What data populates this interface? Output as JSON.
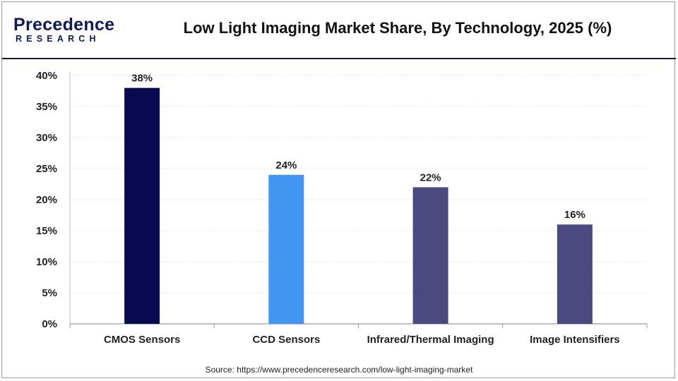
{
  "brand": {
    "name": "Precedence",
    "sub": "RESEARCH"
  },
  "source": "Source: https://www.precedenceresearch.com/low-light-imaging-market",
  "colors": {
    "bar1": "#0a0a50",
    "bar2": "#4495f0",
    "bar3": "#4a4a80",
    "bar4": "#4a4a80",
    "brand": "#0f1a55"
  },
  "chart_data": {
    "type": "bar",
    "title": "Low Light Imaging Market Share, By Technology, 2025 (%)",
    "xlabel": "",
    "ylabel": "",
    "categories": [
      "CMOS Sensors",
      "CCD Sensors",
      "Infrared/Thermal Imaging",
      "Image Intensifiers"
    ],
    "values": [
      38,
      24,
      22,
      16
    ],
    "data_labels": [
      "38%",
      "24%",
      "22%",
      "16%"
    ],
    "ylim": [
      0,
      40
    ],
    "yticks": [
      "0%",
      "5%",
      "10%",
      "15%",
      "20%",
      "25%",
      "30%",
      "35%",
      "40%"
    ],
    "grid": true,
    "legend": "none"
  }
}
